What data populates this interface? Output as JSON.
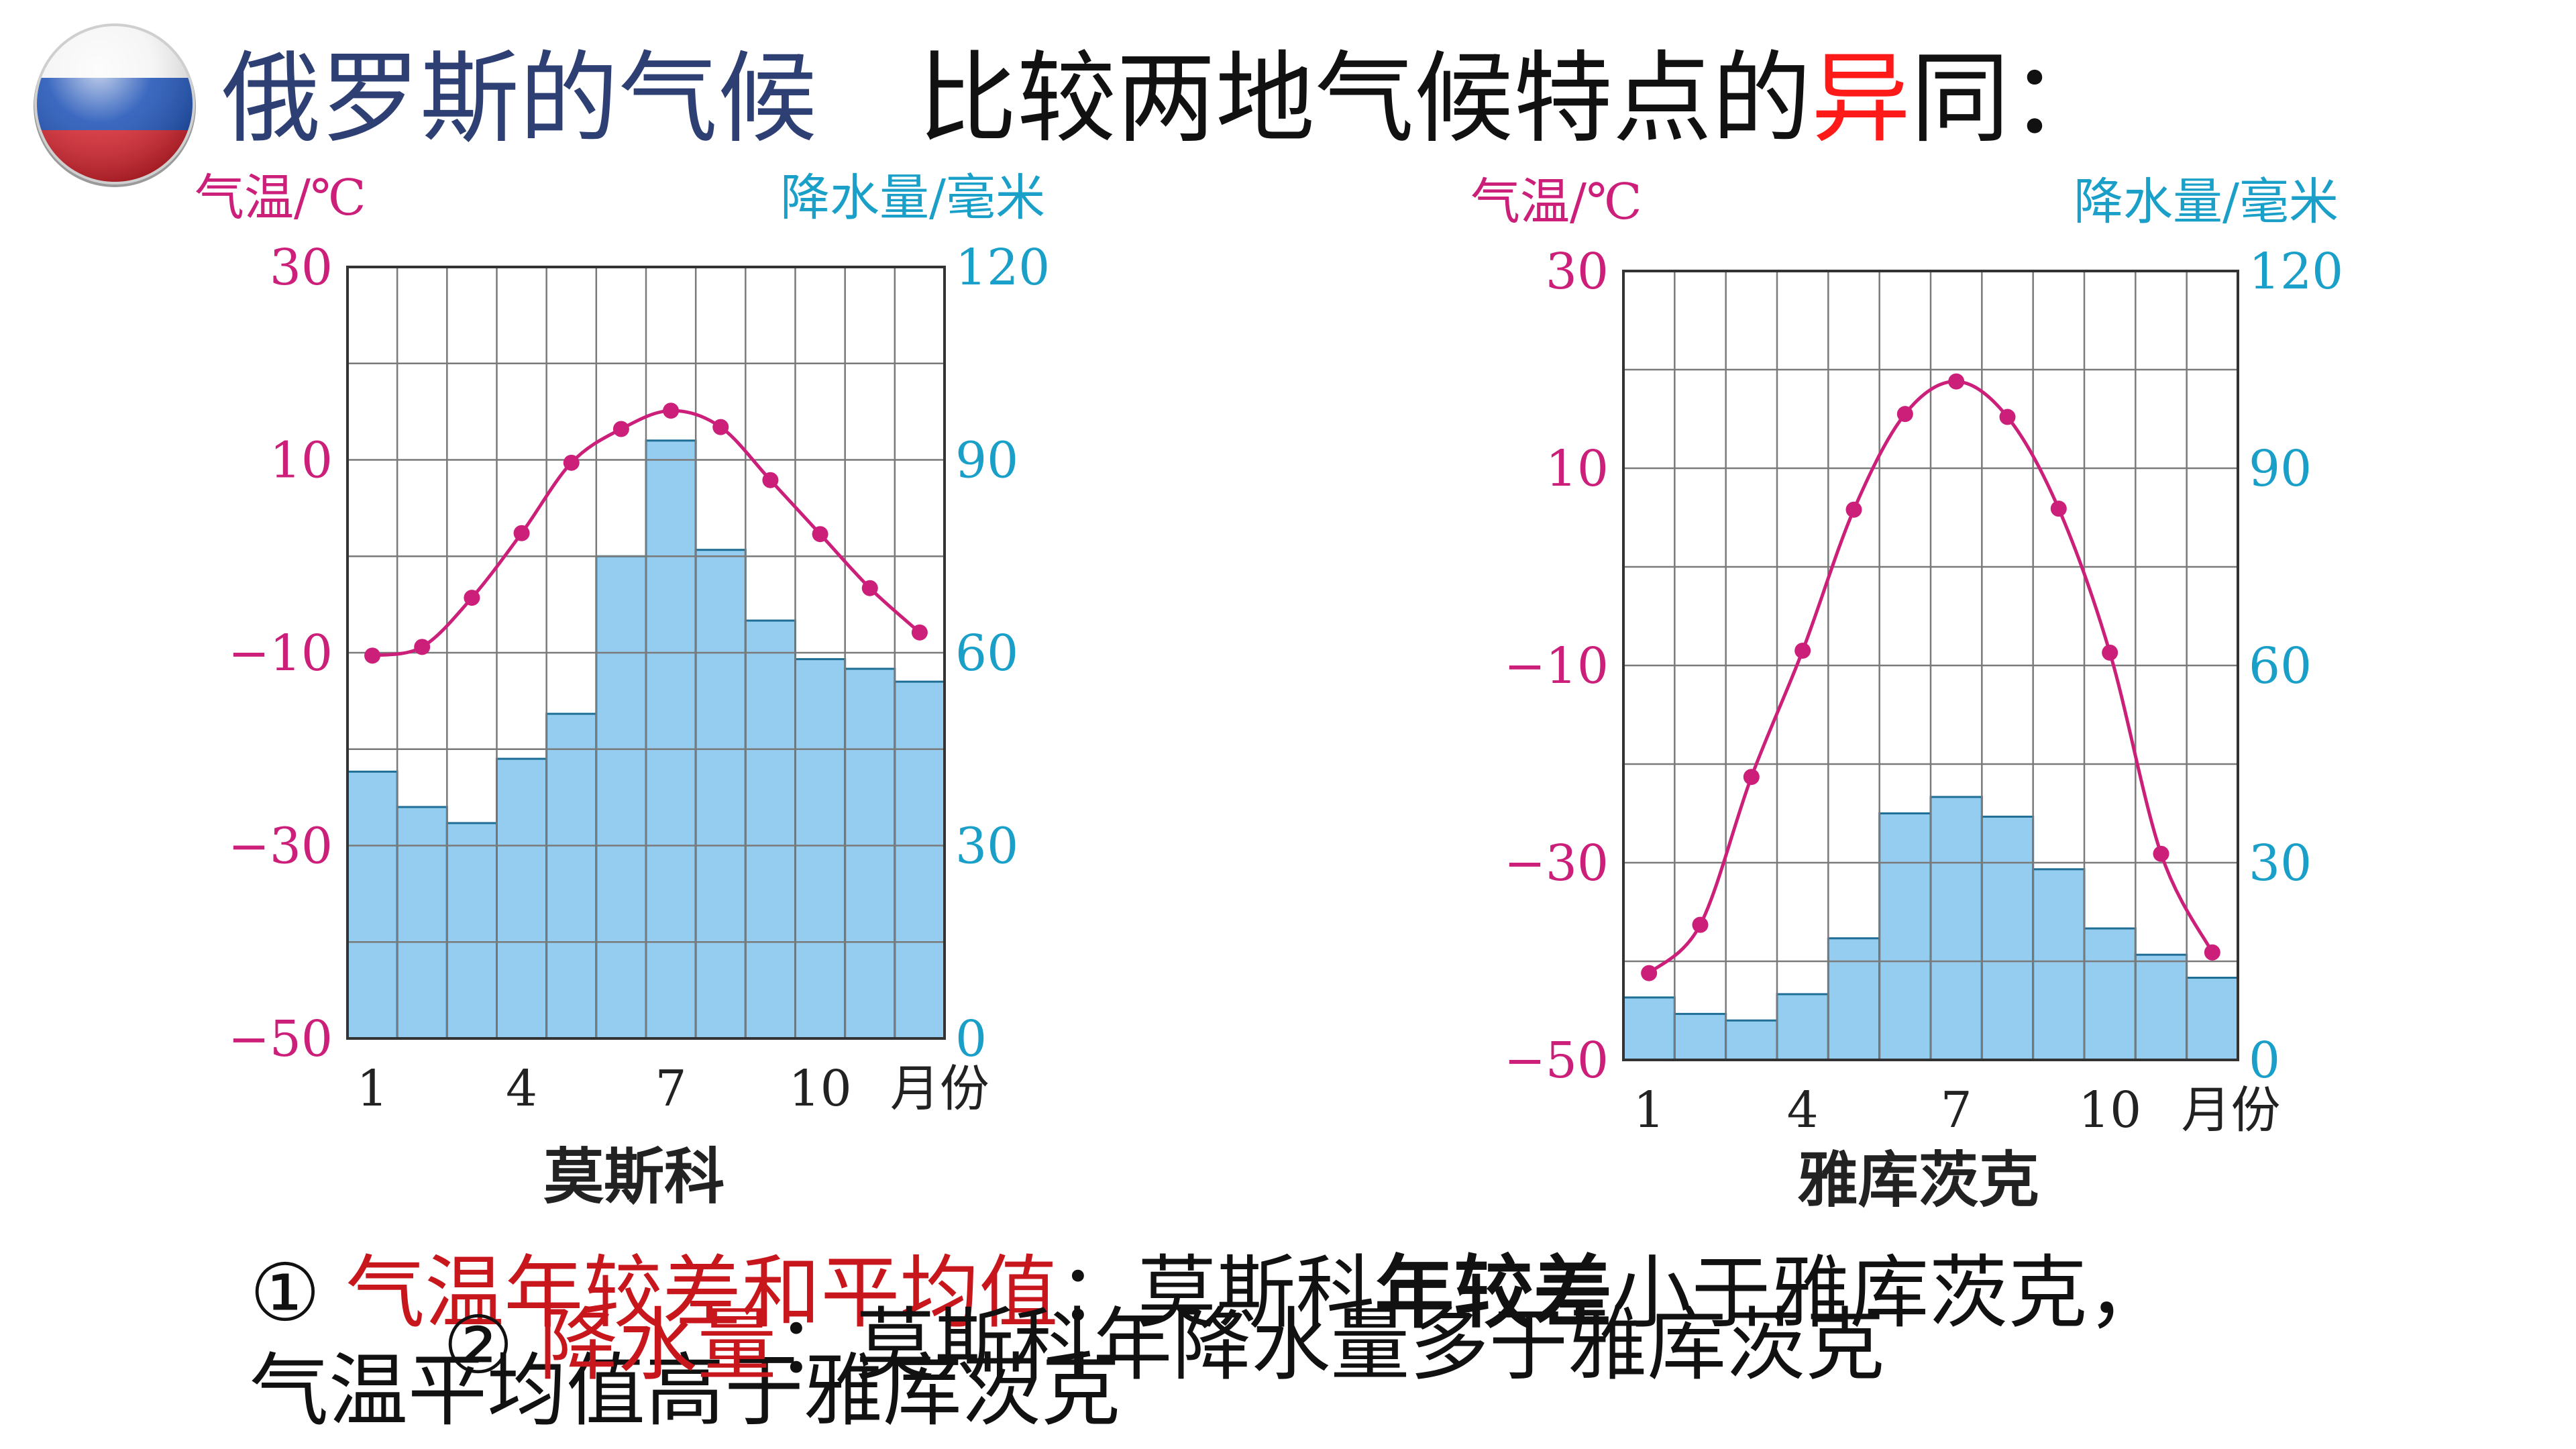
{
  "header": {
    "flag": "russia-flag-icon",
    "title": "俄罗斯的气候",
    "question_pre": "比较两地气候特点的",
    "question_accent": "异",
    "question_post": "同：",
    "accent_color": "#ff1a1a",
    "title_color": "#2e3f73"
  },
  "colors": {
    "temperature": "#cc1f7a",
    "precipitation": "#1aa0c8",
    "bar_fill": "#94cdef",
    "bar_stroke": "#1f6e96",
    "grid": "#7a7a7a"
  },
  "chart_data": [
    {
      "type": "bar",
      "city": "莫斯科",
      "temp_axis_label": "气温/℃",
      "precip_axis_label": "降水量/毫米",
      "month_label": "月份",
      "x_tick_labels": [
        "1",
        "4",
        "7",
        "10"
      ],
      "x_tick_months": [
        1,
        4,
        7,
        10
      ],
      "temp_tick_labels": [
        "30",
        "10",
        "−10",
        "−30",
        "−50"
      ],
      "precip_tick_labels": [
        "120",
        "90",
        "60",
        "30",
        "0"
      ],
      "temp_range": [
        -50,
        30
      ],
      "precip_range": [
        0,
        120
      ],
      "months": [
        1,
        2,
        3,
        4,
        5,
        6,
        7,
        8,
        9,
        10,
        11,
        12
      ],
      "series": [
        {
          "name": "降水量",
          "kind": "bar",
          "axis": "right",
          "values": [
            41.5,
            36,
            33.5,
            43.5,
            50.5,
            75,
            93,
            76,
            65,
            59,
            57.5,
            55.5
          ]
        },
        {
          "name": "气温",
          "kind": "line",
          "axis": "left",
          "values": [
            -10.3,
            -9.4,
            -4.3,
            2.4,
            9.7,
            13.2,
            15.1,
            13.4,
            7.9,
            2.3,
            -3.3,
            -7.9
          ]
        }
      ],
      "grid": true
    },
    {
      "type": "bar",
      "city": "雅库茨克",
      "temp_axis_label": "气温/℃",
      "precip_axis_label": "降水量/毫米",
      "month_label": "月份",
      "x_tick_labels": [
        "1",
        "4",
        "7",
        "10"
      ],
      "x_tick_months": [
        1,
        4,
        7,
        10
      ],
      "temp_tick_labels": [
        "30",
        "10",
        "−10",
        "−30",
        "−50"
      ],
      "precip_tick_labels": [
        "120",
        "90",
        "60",
        "30",
        "0"
      ],
      "temp_range": [
        -50,
        30
      ],
      "precip_range": [
        0,
        120
      ],
      "months": [
        1,
        2,
        3,
        4,
        5,
        6,
        7,
        8,
        9,
        10,
        11,
        12
      ],
      "series": [
        {
          "name": "降水量",
          "kind": "bar",
          "axis": "right",
          "values": [
            9.5,
            7,
            6,
            10,
            18.5,
            37.5,
            40,
            37,
            29,
            20,
            16,
            12.5
          ]
        },
        {
          "name": "气温",
          "kind": "line",
          "axis": "left",
          "values": [
            -41.2,
            -36.3,
            -21.3,
            -8.5,
            5.8,
            15.5,
            18.8,
            15.2,
            5.9,
            -8.7,
            -29.1,
            -39.1
          ]
        }
      ],
      "grid": true
    }
  ],
  "answers": {
    "a1_num": "①",
    "a1_topic": "气温年较差和平均值",
    "a1_sep": "：莫斯科",
    "a1_key": "年较差",
    "a1_tail": "小于雅库茨克，",
    "a1_line2": "气温平均值高于雅库茨克",
    "a2_num": "②",
    "a2_topic": "降水量",
    "a2_text": "：莫斯科年降水量多于雅库茨克"
  }
}
